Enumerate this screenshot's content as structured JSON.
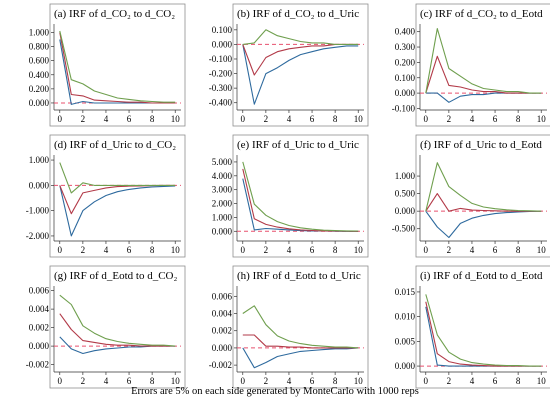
{
  "caption": "Errors are 5% on each side generated by MonteCarlo with 1000 reps",
  "colors": {
    "lower": "#2E6A9E",
    "irf": "#B23A48",
    "upper": "#6F9F4E",
    "zero": "#E8506E",
    "panel_border": "#8E8E8E",
    "axis": "#333333"
  },
  "chart_data": [
    {
      "type": "line",
      "title": "(a) IRF of d_CO₂ to d_CO₂",
      "x": [
        0,
        1,
        2,
        3,
        4,
        5,
        6,
        7,
        8,
        9,
        10
      ],
      "xticks": [
        0,
        2,
        4,
        6,
        8,
        10
      ],
      "xlim": [
        -0.5,
        10.5
      ],
      "ylim": [
        -0.1,
        1.12
      ],
      "yticks": [
        0.0,
        0.2,
        0.4,
        0.6,
        0.8,
        1.0
      ],
      "ytick_labels": [
        "0.000",
        "0.200",
        "0.400",
        "0.600",
        "0.800",
        "1.000"
      ],
      "grid": false,
      "series": [
        {
          "role": "lower",
          "values": [
            0.9,
            -0.02,
            0.02,
            0.0,
            0.0,
            0.0,
            0.0,
            0.0,
            0.0,
            0.0,
            0.0
          ]
        },
        {
          "role": "irf",
          "values": [
            1.0,
            0.12,
            0.1,
            0.04,
            0.03,
            0.02,
            0.01,
            0.01,
            0.0,
            0.0,
            0.0
          ]
        },
        {
          "role": "upper",
          "values": [
            1.02,
            0.33,
            0.27,
            0.17,
            0.12,
            0.07,
            0.05,
            0.03,
            0.02,
            0.01,
            0.01
          ]
        }
      ]
    },
    {
      "type": "line",
      "title": "(b) IRF of d_CO₂ to d_Uric",
      "x": [
        0,
        1,
        2,
        3,
        4,
        5,
        6,
        7,
        8,
        9,
        10
      ],
      "xticks": [
        0,
        2,
        4,
        6,
        8,
        10
      ],
      "xlim": [
        -0.5,
        10.5
      ],
      "ylim": [
        -0.45,
        0.14
      ],
      "yticks": [
        0.1,
        0.0,
        -0.1,
        -0.2,
        -0.3,
        -0.4
      ],
      "ytick_labels": [
        "0.100",
        "0.000",
        "-0.100",
        "-0.200",
        "-0.300",
        "-0.400"
      ],
      "grid": false,
      "series": [
        {
          "role": "lower",
          "values": [
            0.0,
            -0.41,
            -0.2,
            -0.16,
            -0.11,
            -0.07,
            -0.05,
            -0.03,
            -0.02,
            -0.01,
            -0.01
          ]
        },
        {
          "role": "irf",
          "values": [
            0.0,
            -0.21,
            -0.09,
            -0.05,
            -0.03,
            -0.02,
            -0.01,
            -0.01,
            0.0,
            0.0,
            0.0
          ]
        },
        {
          "role": "upper",
          "values": [
            0.0,
            0.01,
            0.1,
            0.06,
            0.04,
            0.02,
            0.01,
            0.01,
            0.0,
            0.0,
            0.0
          ]
        }
      ]
    },
    {
      "type": "line",
      "title": "(c) IRF of d_CO₂ to d_Eotd",
      "x": [
        0,
        1,
        2,
        3,
        4,
        5,
        6,
        7,
        8,
        9,
        10
      ],
      "xticks": [
        0,
        2,
        4,
        6,
        8,
        10
      ],
      "xlim": [
        -0.5,
        10.5
      ],
      "ylim": [
        -0.11,
        0.45
      ],
      "yticks": [
        0.4,
        0.3,
        0.2,
        0.1,
        0.0,
        -0.1
      ],
      "ytick_labels": [
        "0.400",
        "0.300",
        "0.200",
        "0.100",
        "0.000",
        "-0.100"
      ],
      "grid": false,
      "series": [
        {
          "role": "lower",
          "values": [
            0.0,
            0.0,
            -0.06,
            -0.02,
            -0.01,
            -0.01,
            0.0,
            0.0,
            0.0,
            0.0,
            0.0
          ]
        },
        {
          "role": "irf",
          "values": [
            0.0,
            0.24,
            0.05,
            0.04,
            0.02,
            0.01,
            0.01,
            0.0,
            0.0,
            0.0,
            0.0
          ]
        },
        {
          "role": "upper",
          "values": [
            0.0,
            0.42,
            0.16,
            0.11,
            0.06,
            0.03,
            0.02,
            0.01,
            0.01,
            0.0,
            0.0
          ]
        }
      ]
    },
    {
      "type": "line",
      "title": "(d) IRF of d_Uric to d_CO₂",
      "x": [
        0,
        1,
        2,
        3,
        4,
        5,
        6,
        7,
        8,
        9,
        10
      ],
      "xticks": [
        0,
        2,
        4,
        6,
        8,
        10
      ],
      "xlim": [
        -0.5,
        10.5
      ],
      "ylim": [
        -2.2,
        1.2
      ],
      "yticks": [
        1.0,
        0.0,
        -1.0,
        -2.0
      ],
      "ytick_labels": [
        "1.000",
        "0.000",
        "-1.000",
        "-2.000"
      ],
      "grid": false,
      "series": [
        {
          "role": "lower",
          "values": [
            0.0,
            -2.0,
            -1.0,
            -0.65,
            -0.4,
            -0.25,
            -0.16,
            -0.1,
            -0.06,
            -0.04,
            -0.02
          ]
        },
        {
          "role": "irf",
          "values": [
            0.0,
            -1.12,
            -0.3,
            -0.2,
            -0.1,
            -0.05,
            -0.03,
            -0.02,
            -0.01,
            0.0,
            0.0
          ]
        },
        {
          "role": "upper",
          "values": [
            0.9,
            -0.3,
            0.1,
            0.0,
            0.0,
            0.0,
            0.0,
            0.0,
            0.0,
            0.0,
            0.0
          ]
        }
      ]
    },
    {
      "type": "line",
      "title": "(e) IRF of d_Uric to d_Uric",
      "x": [
        0,
        1,
        2,
        3,
        4,
        5,
        6,
        7,
        8,
        9,
        10
      ],
      "xticks": [
        0,
        2,
        4,
        6,
        8,
        10
      ],
      "xlim": [
        -0.5,
        10.5
      ],
      "ylim": [
        -0.7,
        5.5
      ],
      "yticks": [
        5.0,
        4.0,
        3.0,
        2.0,
        1.0,
        0.0
      ],
      "ytick_labels": [
        "5.000",
        "4.000",
        "3.000",
        "2.000",
        "1.000",
        "0.000"
      ],
      "grid": false,
      "series": [
        {
          "role": "lower",
          "values": [
            3.8,
            0.1,
            0.2,
            0.15,
            0.1,
            0.05,
            0.03,
            0.02,
            0.01,
            0.0,
            0.0
          ]
        },
        {
          "role": "irf",
          "values": [
            4.5,
            0.9,
            0.5,
            0.3,
            0.18,
            0.1,
            0.06,
            0.03,
            0.02,
            0.01,
            0.0
          ]
        },
        {
          "role": "upper",
          "values": [
            5.0,
            1.95,
            1.15,
            0.7,
            0.42,
            0.25,
            0.15,
            0.08,
            0.05,
            0.03,
            0.02
          ]
        }
      ]
    },
    {
      "type": "line",
      "title": "(f) IRF of d_Uric to d_Eotd",
      "x": [
        0,
        1,
        2,
        3,
        4,
        5,
        6,
        7,
        8,
        9,
        10
      ],
      "xticks": [
        0,
        2,
        4,
        6,
        8,
        10
      ],
      "xlim": [
        -0.5,
        10.5
      ],
      "ylim": [
        -0.85,
        1.6
      ],
      "yticks": [
        1.0,
        0.5,
        0.0,
        -0.5
      ],
      "ytick_labels": [
        "1.000",
        "0.500",
        "0.000",
        "-0.500"
      ],
      "grid": false,
      "series": [
        {
          "role": "lower",
          "values": [
            0.0,
            -0.45,
            -0.75,
            -0.35,
            -0.2,
            -0.12,
            -0.07,
            -0.04,
            -0.02,
            -0.01,
            0.0
          ]
        },
        {
          "role": "irf",
          "values": [
            0.0,
            0.5,
            0.0,
            0.08,
            0.03,
            0.02,
            0.01,
            0.0,
            0.0,
            0.0,
            0.0
          ]
        },
        {
          "role": "upper",
          "values": [
            0.0,
            1.38,
            0.7,
            0.45,
            0.22,
            0.12,
            0.07,
            0.04,
            0.02,
            0.01,
            0.0
          ]
        }
      ]
    },
    {
      "type": "line",
      "title": "(g) IRF of d_Eotd to d_CO₂",
      "x": [
        0,
        1,
        2,
        3,
        4,
        5,
        6,
        7,
        8,
        9,
        10
      ],
      "xticks": [
        0,
        2,
        4,
        6,
        8,
        10
      ],
      "xlim": [
        -0.5,
        10.5
      ],
      "ylim": [
        -0.0028,
        0.0065
      ],
      "yticks": [
        0.006,
        0.004,
        0.002,
        0.0,
        -0.002
      ],
      "ytick_labels": [
        "0.006",
        "0.004",
        "0.002",
        "0.000",
        "-0.002"
      ],
      "grid": false,
      "series": [
        {
          "role": "lower",
          "values": [
            0.001,
            -0.0003,
            -0.0008,
            -0.0005,
            -0.0003,
            -0.0002,
            -0.0001,
            -0.0001,
            0.0,
            0.0,
            0.0
          ]
        },
        {
          "role": "irf",
          "values": [
            0.0035,
            0.0018,
            0.0006,
            0.0004,
            0.0002,
            0.0001,
            0.0001,
            0.0,
            0.0,
            0.0,
            0.0
          ]
        },
        {
          "role": "upper",
          "values": [
            0.0055,
            0.0045,
            0.0022,
            0.0014,
            0.0008,
            0.0005,
            0.0003,
            0.0002,
            0.0001,
            0.0001,
            0.0
          ]
        }
      ]
    },
    {
      "type": "line",
      "title": "(h) IRF of d_Eotd to d_Uric",
      "x": [
        0,
        1,
        2,
        3,
        4,
        5,
        6,
        7,
        8,
        9,
        10
      ],
      "xticks": [
        0,
        2,
        4,
        6,
        8,
        10
      ],
      "xlim": [
        -0.5,
        10.5
      ],
      "ylim": [
        -0.0028,
        0.0072
      ],
      "yticks": [
        0.006,
        0.004,
        0.002,
        0.0,
        -0.002
      ],
      "ytick_labels": [
        "0.006",
        "0.004",
        "0.002",
        "0.000",
        "-0.002"
      ],
      "grid": false,
      "series": [
        {
          "role": "lower",
          "values": [
            0.0,
            -0.0023,
            -0.0017,
            -0.001,
            -0.0007,
            -0.0004,
            -0.0003,
            -0.0002,
            -0.0001,
            -0.0001,
            0.0
          ]
        },
        {
          "role": "irf",
          "values": [
            0.0015,
            0.0015,
            0.0002,
            0.0002,
            0.0001,
            0.0001,
            0.0,
            0.0,
            0.0,
            0.0,
            0.0
          ]
        },
        {
          "role": "upper",
          "values": [
            0.004,
            0.0049,
            0.0027,
            0.0014,
            0.0008,
            0.0005,
            0.0003,
            0.0002,
            0.0001,
            0.0001,
            0.0
          ]
        }
      ]
    },
    {
      "type": "line",
      "title": "(i) IRF of d_Eotd to d_Eotd",
      "x": [
        0,
        1,
        2,
        3,
        4,
        5,
        6,
        7,
        8,
        9,
        10
      ],
      "xticks": [
        0,
        2,
        4,
        6,
        8,
        10
      ],
      "xlim": [
        -0.5,
        10.5
      ],
      "ylim": [
        -0.0012,
        0.0162
      ],
      "yticks": [
        0.015,
        0.01,
        0.005,
        0.0
      ],
      "ytick_labels": [
        "0.015",
        "0.010",
        "0.005",
        "0.000"
      ],
      "grid": false,
      "series": [
        {
          "role": "lower",
          "values": [
            0.012,
            0.0002,
            0.0,
            0.0,
            0.0,
            0.0,
            0.0,
            0.0,
            0.0,
            0.0,
            0.0
          ]
        },
        {
          "role": "irf",
          "values": [
            0.013,
            0.0025,
            0.0009,
            0.0004,
            0.0002,
            0.0001,
            0.0,
            0.0,
            0.0,
            0.0,
            0.0
          ]
        },
        {
          "role": "upper",
          "values": [
            0.0145,
            0.0063,
            0.0028,
            0.0014,
            0.0007,
            0.0004,
            0.0002,
            0.0001,
            0.0001,
            0.0,
            0.0
          ]
        }
      ]
    }
  ]
}
